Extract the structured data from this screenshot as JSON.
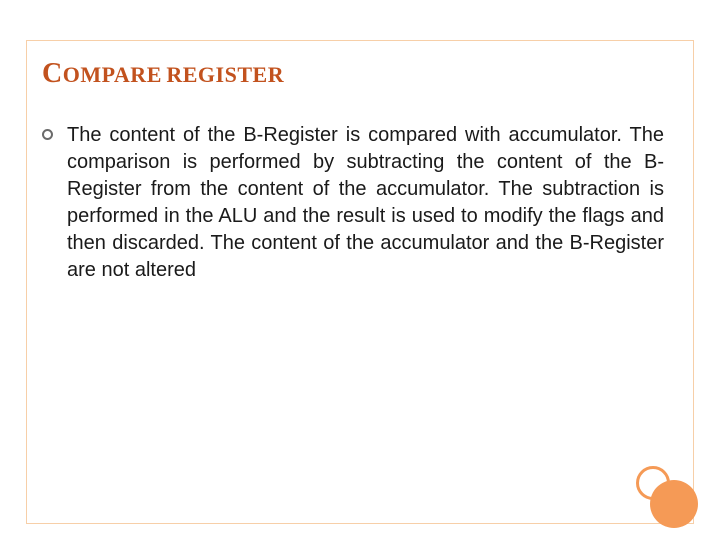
{
  "title": {
    "word1_first": "C",
    "word1_rest": "OMPARE",
    "word2": "REGISTER"
  },
  "bullets": [
    {
      "text": "The content of the B-Register is compared with accumulator. The comparison is performed by subtracting the content of the B-Register from the content of the accumulator. The subtraction is performed in the ALU and the result is used to modify the flags and then discarded. The content of the accumulator and the B-Register are not altered"
    }
  ],
  "style": {
    "title_color": "#c2521e",
    "border_color": "#f7cfa8",
    "accent_color": "#f59a56",
    "text_color": "#1a1a1a",
    "bullet_ring_color": "#6b6b6b",
    "title_big_fontsize": 28,
    "title_small_fontsize": 22,
    "body_fontsize": 20
  }
}
